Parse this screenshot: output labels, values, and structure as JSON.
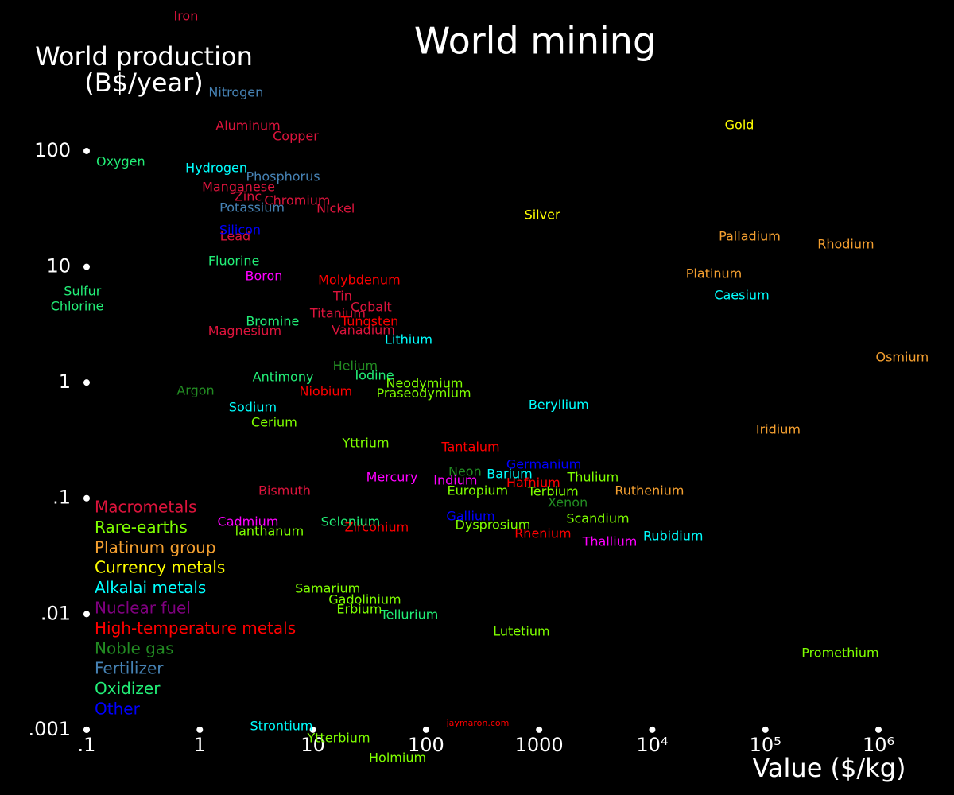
{
  "chart_data": {
    "type": "scatter",
    "title": "World mining",
    "ylabel": [
      "World production",
      "(B$/year)"
    ],
    "xlabel": "Value ($/kg)",
    "watermark": "jaymaron.com",
    "xscale": "log",
    "yscale": "log",
    "xlim": [
      0.01714,
      4650000
    ],
    "ylim": [
      0.000273,
      2018
    ],
    "xticks": [
      {
        "value": 0.1,
        "label": ".1"
      },
      1,
      10,
      100,
      1000,
      {
        "value": 10000,
        "label": "10⁴"
      },
      {
        "value": 100000,
        "label": "10⁵"
      },
      {
        "value": 1000000,
        "label": "10⁶"
      }
    ],
    "yticks": [
      {
        "value": 0.001,
        "label": ".001"
      },
      {
        "value": 0.01,
        "label": ".01"
      },
      {
        "value": 0.1,
        "label": ".1"
      },
      1,
      10,
      100
    ],
    "series": [
      {
        "name": "Macrometals",
        "color": "#dc143c",
        "labels": [
          "Iron",
          "Aluminum",
          "Copper",
          "Manganese",
          "Zinc",
          "Chromium",
          "Nickel",
          "Lead",
          "Magnesium",
          "Titanium",
          "Tin",
          "Cobalt",
          "Vanadium",
          "Bismuth"
        ],
        "x": [
          0.755,
          2.67,
          7.05,
          2.2,
          2.67,
          7.28,
          15.9,
          2.06,
          2.5,
          16.6,
          18.3,
          32.8,
          27.9,
          5.62
        ],
        "values": [
          1450,
          163,
          133,
          48.3,
          40.0,
          36.9,
          31.6,
          18.1,
          2.76,
          3.91,
          5.53,
          4.44,
          2.81,
          0.115
        ]
      },
      {
        "name": "Rare-earths",
        "color": "#7fff00",
        "labels": [
          "Neodymium",
          "Praseodymium",
          "Cerium",
          "Yttrium",
          "Europium",
          "Terbium",
          "Thulium",
          "Dysprosium",
          "Scandium",
          "lanthanum",
          "Samarium",
          "Gadolinium",
          "Erbium",
          "Lutetium",
          "Promethium",
          "Ytterbium",
          "Holmium"
        ],
        "x": [
          97,
          95.5,
          4.55,
          29.3,
          286,
          1330,
          2990,
          390,
          3300,
          4.13,
          13.5,
          28.8,
          25.7,
          698,
          459000,
          16.9,
          56
        ],
        "values": [
          0.97,
          0.8,
          0.448,
          0.297,
          0.115,
          0.113,
          0.15,
          0.0582,
          0.066,
          0.0513,
          0.0164,
          0.0132,
          0.0109,
          0.007,
          0.00456,
          0.00084,
          0.000566
        ]
      },
      {
        "name": "Platinum group",
        "color": "#f5a030",
        "labels": [
          "Palladium",
          "Rhodium",
          "Platinum",
          "Osmium",
          "Iridium",
          "Ruthenium"
        ],
        "x": [
          72600,
          514000,
          35100,
          1620000,
          130000,
          9440
        ],
        "values": [
          18.1,
          15.5,
          8.6,
          1.64,
          0.388,
          0.115
        ]
      },
      {
        "name": "Currency metals",
        "color": "#ffff00",
        "labels": [
          "Gold",
          "Silver"
        ],
        "x": [
          58900,
          1065
        ],
        "values": [
          166,
          27.8
        ]
      },
      {
        "name": "Alkalai metals",
        "color": "#00ffff",
        "labels": [
          "Hydrogen",
          "Caesium",
          "Lithium",
          "Sodium",
          "Beryllium",
          "Barium",
          "Rubidium",
          "Strontium"
        ],
        "x": [
          1.4,
          61800,
          70.2,
          2.94,
          1490,
          548,
          15300,
          5.27
        ],
        "values": [
          70.6,
          5.62,
          2.32,
          0.605,
          0.634,
          0.16,
          0.0466,
          0.00106
        ]
      },
      {
        "name": "Nuclear fuel",
        "color": "#800080",
        "labels": [],
        "x": [],
        "values": []
      },
      {
        "name": "High-temperature metals",
        "color": "#ff0000",
        "labels": [
          "Molybdenum",
          "Tungsten",
          "Niobium",
          "Tantalum",
          "Hafnium",
          "Rhenium",
          "Zirconium"
        ],
        "x": [
          25.7,
          31.8,
          13.0,
          248,
          889,
          1080,
          36.7
        ],
        "values": [
          7.59,
          3.33,
          0.83,
          0.274,
          0.135,
          0.049,
          0.0556
        ]
      },
      {
        "name": "Noble gas",
        "color": "#228b22",
        "labels": [
          "Helium",
          "Argon",
          "Neon",
          "Xenon"
        ],
        "x": [
          23.7,
          0.918,
          221,
          1790
        ],
        "values": [
          1.38,
          0.843,
          0.168,
          0.0906
        ]
      },
      {
        "name": "Fertilizer",
        "color": "#4682b4",
        "labels": [
          "Nitrogen",
          "Phosphorus",
          "Potassium"
        ],
        "x": [
          2.09,
          5.45,
          2.9
        ],
        "values": [
          317,
          59.3,
          32.0
        ]
      },
      {
        "name": "Oxidizer",
        "color": "#22ee77",
        "labels": [
          "Oxygen",
          "Fluorine",
          "Sulfur",
          "Chlorine",
          "Bromine",
          "Antimony",
          "Iodine",
          "Selenium",
          "Tellurium"
        ],
        "x": [
          0.2,
          2.0,
          0.092,
          0.0824,
          4.4,
          5.45,
          35,
          21.5,
          71.3
        ],
        "values": [
          80.1,
          11.1,
          6.08,
          4.51,
          3.33,
          1.1,
          1.14,
          0.0621,
          0.00975
        ]
      },
      {
        "name": "Other",
        "color": "#0000ff",
        "labels": [
          "Silicon",
          "Gallium",
          "Germanium"
        ],
        "x": [
          2.27,
          248,
          1100
        ],
        "values": [
          20.6,
          0.0693,
          0.194
        ]
      },
      {
        "color": "#ff00ff",
        "labels": [
          "Boron",
          "Mercury",
          "Indium",
          "Cadmium",
          "Thallium"
        ],
        "x": [
          3.69,
          50,
          182,
          2.67,
          4210
        ],
        "values": [
          8.22,
          0.15,
          0.141,
          0.0621,
          0.0418
        ]
      }
    ]
  }
}
